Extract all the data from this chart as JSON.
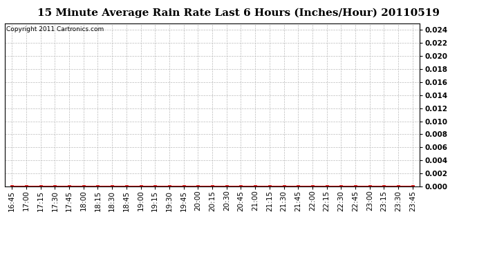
{
  "title": "15 Minute Average Rain Rate Last 6 Hours (Inches/Hour) 20110519",
  "copyright_text": "Copyright 2011 Cartronics.com",
  "x_labels": [
    "16:45",
    "17:00",
    "17:15",
    "17:30",
    "17:45",
    "18:00",
    "18:15",
    "18:30",
    "18:45",
    "19:00",
    "19:15",
    "19:30",
    "19:45",
    "20:00",
    "20:15",
    "20:30",
    "20:45",
    "21:00",
    "21:15",
    "21:30",
    "21:45",
    "22:00",
    "22:15",
    "22:30",
    "22:45",
    "23:00",
    "23:15",
    "23:30",
    "23:45"
  ],
  "y_values": [
    0,
    0,
    0,
    0,
    0,
    0,
    0,
    0,
    0,
    0,
    0,
    0,
    0,
    0,
    0,
    0,
    0,
    0,
    0,
    0,
    0,
    0,
    0,
    0,
    0,
    0,
    0,
    0,
    0
  ],
  "ylim": [
    0,
    0.025
  ],
  "yticks": [
    0.0,
    0.002,
    0.004,
    0.006,
    0.008,
    0.01,
    0.012,
    0.014,
    0.016,
    0.018,
    0.02,
    0.022,
    0.024
  ],
  "line_color": "#cc0000",
  "marker_color": "#cc0000",
  "marker": "s",
  "background_color": "#ffffff",
  "plot_bg_color": "#ffffff",
  "grid_color": "#bbbbbb",
  "title_fontsize": 11,
  "tick_fontsize": 7.5,
  "copyright_fontsize": 6.5
}
